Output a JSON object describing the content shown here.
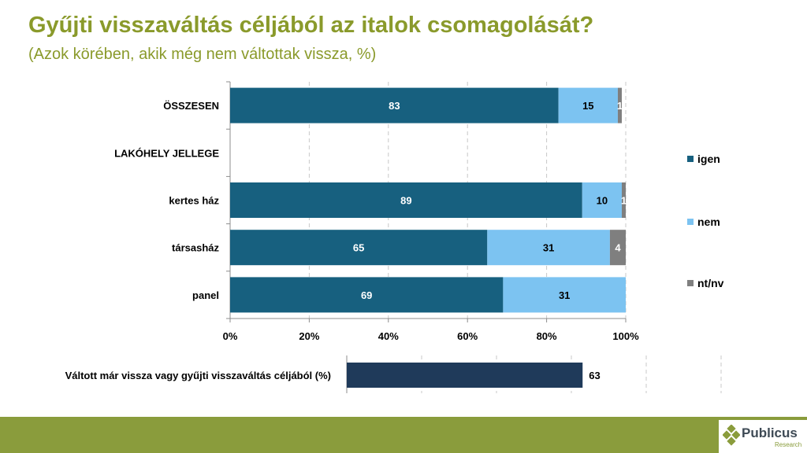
{
  "title": "Gyűjti visszaváltás céljából az italok csomagolását?",
  "subtitle": "(Azok körében, akik még nem váltottak vissza, %)",
  "chart_data": [
    {
      "type": "bar",
      "orientation": "horizontal",
      "stacked": true,
      "categories": [
        "ÖSSZESEN",
        "LAKÓHELY JELLEGE",
        "kertes ház",
        "társasház",
        "panel"
      ],
      "category_bold": [
        true,
        true,
        false,
        false,
        false
      ],
      "series": [
        {
          "name": "igen",
          "color": "#17607f",
          "values": [
            83,
            null,
            89,
            65,
            69
          ]
        },
        {
          "name": "nem",
          "color": "#7cc3f1",
          "values": [
            15,
            null,
            10,
            31,
            31
          ]
        },
        {
          "name": "nt/nv",
          "color": "#7f7f7f",
          "values": [
            1,
            null,
            1,
            4,
            null
          ]
        }
      ],
      "data_labels": [
        [
          "83",
          "15",
          "1"
        ],
        [
          "",
          "",
          ""
        ],
        [
          "89",
          "10",
          "1"
        ],
        [
          "65",
          "31",
          "4"
        ],
        [
          "69",
          "31",
          ""
        ]
      ],
      "xlim": [
        0,
        100
      ],
      "xticks": [
        "0%",
        "20%",
        "40%",
        "60%",
        "80%",
        "100%"
      ],
      "grid": true,
      "legend_position": "right"
    },
    {
      "type": "bar",
      "orientation": "horizontal",
      "categories": [
        "Váltott már vissza vagy gyűjti visszaváltás céljából (%)"
      ],
      "values": [
        63
      ],
      "color": "#1f3a5a",
      "data_labels": [
        "63"
      ],
      "xlim": [
        0,
        100
      ],
      "grid": true
    }
  ],
  "brand": {
    "name": "Publicus",
    "sub": "Research",
    "accent": "#8a9c3c",
    "title_color": "#8a9a2b"
  }
}
